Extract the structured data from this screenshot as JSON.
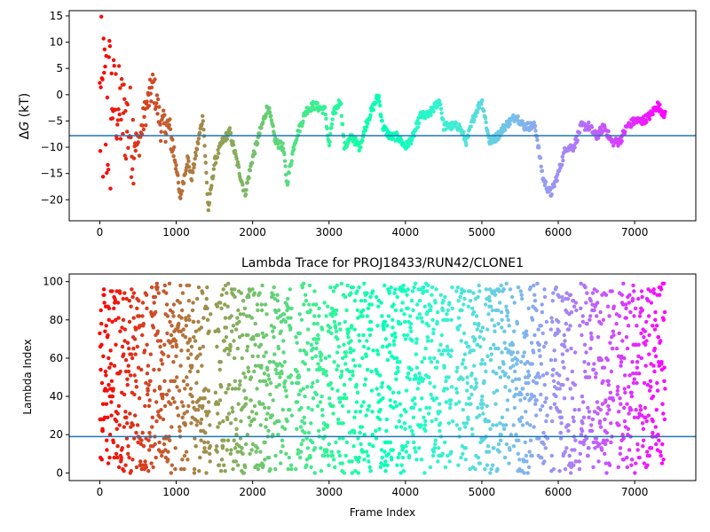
{
  "chart_data": [
    {
      "type": "scatter",
      "title": "",
      "xlabel": "",
      "ylabel": "ΔG (kT)",
      "ylabel_parts": {
        "delta": "Δ",
        "var": "G",
        "unit": " (kT)"
      },
      "xlim": [
        -400,
        7800
      ],
      "ylim": [
        -24,
        16
      ],
      "xticks": [
        0,
        1000,
        2000,
        3000,
        4000,
        5000,
        6000,
        7000
      ],
      "yticks": [
        -20,
        -15,
        -10,
        -5,
        0,
        5,
        10,
        15
      ],
      "hline": -7.8,
      "hline_color": "#1f77b4",
      "grid": false,
      "legend": "none",
      "colormap": "rainbow (reversed along frame index)",
      "keypoints": [
        [
          0,
          0
        ],
        [
          80,
          -5
        ],
        [
          150,
          0
        ],
        [
          250,
          -3
        ],
        [
          350,
          -5
        ],
        [
          500,
          -10
        ],
        [
          600,
          -3
        ],
        [
          700,
          2
        ],
        [
          800,
          -6
        ],
        [
          900,
          -6
        ],
        [
          1000,
          -13
        ],
        [
          1050,
          -20
        ],
        [
          1150,
          -12
        ],
        [
          1200,
          -16
        ],
        [
          1300,
          -8
        ],
        [
          1350,
          -4
        ],
        [
          1420,
          -22
        ],
        [
          1500,
          -13
        ],
        [
          1600,
          -9
        ],
        [
          1700,
          -7
        ],
        [
          1800,
          -13
        ],
        [
          1900,
          -19
        ],
        [
          2000,
          -12
        ],
        [
          2100,
          -7
        ],
        [
          2200,
          -2
        ],
        [
          2300,
          -9
        ],
        [
          2400,
          -10
        ],
        [
          2450,
          -17
        ],
        [
          2550,
          -9
        ],
        [
          2700,
          -3
        ],
        [
          2800,
          -2
        ],
        [
          2950,
          -3
        ],
        [
          3000,
          -10
        ],
        [
          3050,
          -4
        ],
        [
          3150,
          -1
        ],
        [
          3200,
          -10
        ],
        [
          3300,
          -8
        ],
        [
          3400,
          -10
        ],
        [
          3500,
          -5
        ],
        [
          3650,
          0
        ],
        [
          3700,
          -6
        ],
        [
          3800,
          -8
        ],
        [
          3900,
          -8
        ],
        [
          4000,
          -10
        ],
        [
          4100,
          -8
        ],
        [
          4200,
          -4
        ],
        [
          4300,
          -4
        ],
        [
          4450,
          -1
        ],
        [
          4500,
          -6
        ],
        [
          4700,
          -6
        ],
        [
          4800,
          -9
        ],
        [
          4900,
          -4
        ],
        [
          5000,
          -1
        ],
        [
          5100,
          -9
        ],
        [
          5200,
          -8
        ],
        [
          5300,
          -6
        ],
        [
          5450,
          -4
        ],
        [
          5550,
          -6
        ],
        [
          5700,
          -6
        ],
        [
          5800,
          -16
        ],
        [
          5900,
          -19
        ],
        [
          6000,
          -15
        ],
        [
          6100,
          -10
        ],
        [
          6200,
          -10
        ],
        [
          6300,
          -6
        ],
        [
          6400,
          -6
        ],
        [
          6500,
          -8
        ],
        [
          6600,
          -6
        ],
        [
          6700,
          -9
        ],
        [
          6800,
          -9
        ],
        [
          6900,
          -6
        ],
        [
          7000,
          -5
        ],
        [
          7100,
          -5
        ],
        [
          7200,
          -4
        ],
        [
          7300,
          -2
        ],
        [
          7400,
          -4
        ]
      ]
    },
    {
      "type": "scatter",
      "title": "Lambda Trace for PROJ18433/RUN42/CLONE1",
      "xlabel": "Frame Index",
      "ylabel": "Lambda Index",
      "xlim": [
        -400,
        7800
      ],
      "ylim": [
        -4,
        104
      ],
      "xticks": [
        0,
        1000,
        2000,
        3000,
        4000,
        5000,
        6000,
        7000
      ],
      "yticks": [
        0,
        20,
        40,
        60,
        80,
        100
      ],
      "hline": 19,
      "hline_color": "#1f77b4",
      "grid": false,
      "legend": "none",
      "colormap": "rainbow (reversed along frame index)",
      "value_range": [
        0,
        99
      ]
    }
  ]
}
